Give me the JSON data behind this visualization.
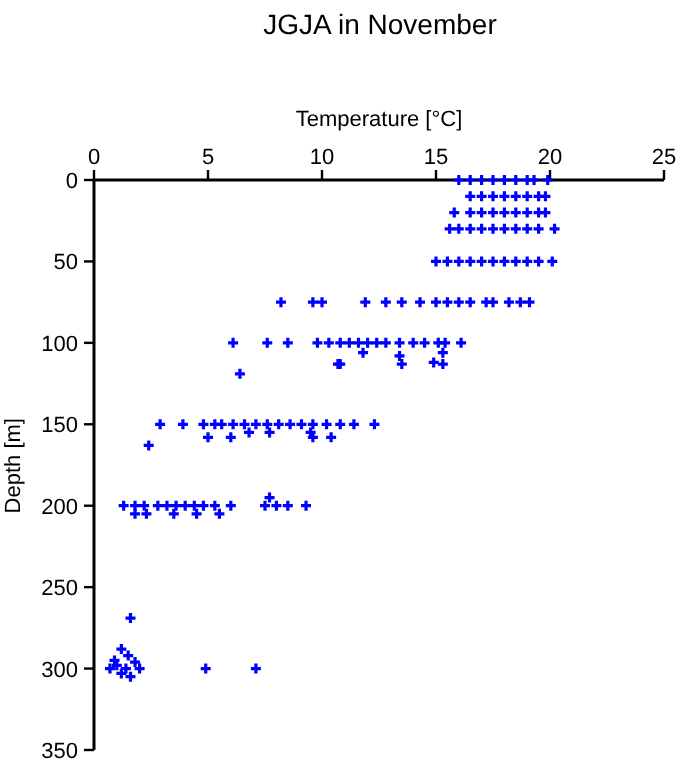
{
  "chart_data": {
    "type": "scatter",
    "title": "JGJA in November",
    "xlabel": "Temperature [°C]",
    "ylabel": "Depth [m]",
    "xlim": [
      0,
      25
    ],
    "xticks": [
      0,
      5,
      10,
      15,
      20,
      25
    ],
    "ylim": [
      350,
      0
    ],
    "yticks": [
      0,
      50,
      100,
      150,
      200,
      250,
      300,
      350
    ],
    "grid": false,
    "marker": "cross",
    "series": [
      {
        "color": "#0000ff",
        "x": [
          16,
          16.5,
          17,
          17.5,
          18,
          18.5,
          19,
          19.3,
          19.9,
          16.5,
          17,
          17.5,
          18,
          18.5,
          19,
          19.5,
          19.8,
          15.8,
          16.5,
          17,
          17.5,
          18,
          18.5,
          19,
          19.5,
          19.8,
          15.6,
          16,
          16.5,
          17,
          17.5,
          18,
          18.5,
          19,
          19.5,
          20.2,
          15,
          15.5,
          16,
          16.5,
          17,
          17.5,
          18,
          18.5,
          19,
          19.5,
          20.1,
          8.2,
          9.6,
          10,
          11.9,
          12.8,
          13.5,
          14.3,
          15,
          15.5,
          16,
          16.5,
          17.2,
          17.5,
          18.2,
          18.7,
          19.1,
          6.1,
          7.6,
          8.5,
          9.8,
          10.3,
          10.8,
          11.2,
          11.6,
          12,
          12.4,
          12.8,
          13.4,
          14,
          14.5,
          15.1,
          15.4,
          16.1,
          10.7,
          13.5,
          15.3,
          13.4,
          11.8,
          15.3,
          14.9,
          10.8,
          6.4,
          2.9,
          3.9,
          4.8,
          5.3,
          5.6,
          6.1,
          6.6,
          7.1,
          7.6,
          8.1,
          8.6,
          9.1,
          9.6,
          10.2,
          10.8,
          11.4,
          12.3,
          6.8,
          7.7,
          9.5,
          5,
          6,
          9.6,
          10.4,
          2.4,
          1.3,
          1.8,
          2.2,
          2.8,
          3.2,
          3.6,
          4,
          4.4,
          4.8,
          5.3,
          6,
          7.5,
          8,
          8.5,
          9.3,
          1.8,
          2.3,
          3.5,
          4.5,
          5.5,
          7.7,
          1.6,
          1.2,
          1.5,
          0.9,
          1.8,
          1,
          1.4,
          2,
          1.2,
          1.6,
          0.7,
          4.9,
          7.1
        ],
        "values": [
          0,
          0,
          0,
          0,
          0,
          0,
          0,
          0,
          0,
          10,
          10,
          10,
          10,
          10,
          10,
          10,
          10,
          20,
          20,
          20,
          20,
          20,
          20,
          20,
          20,
          20,
          30,
          30,
          30,
          30,
          30,
          30,
          30,
          30,
          30,
          30,
          50,
          50,
          50,
          50,
          50,
          50,
          50,
          50,
          50,
          50,
          50,
          75,
          75,
          75,
          75,
          75,
          75,
          75,
          75,
          75,
          75,
          75,
          75,
          75,
          75,
          75,
          75,
          100,
          100,
          100,
          100,
          100,
          100,
          100,
          100,
          100,
          100,
          100,
          100,
          100,
          100,
          100,
          100,
          100,
          113,
          113,
          113,
          108,
          106,
          106,
          112,
          113,
          119,
          150,
          150,
          150,
          150,
          150,
          150,
          150,
          150,
          150,
          150,
          150,
          150,
          150,
          150,
          150,
          150,
          150,
          155,
          155,
          155,
          158,
          158,
          158,
          158,
          163,
          200,
          200,
          200,
          200,
          200,
          200,
          200,
          200,
          200,
          200,
          200,
          200,
          200,
          200,
          200,
          205,
          205,
          205,
          205,
          205,
          195,
          269,
          288,
          292,
          295,
          296,
          298,
          300,
          300,
          303,
          305,
          300,
          300,
          300
        ]
      }
    ]
  }
}
